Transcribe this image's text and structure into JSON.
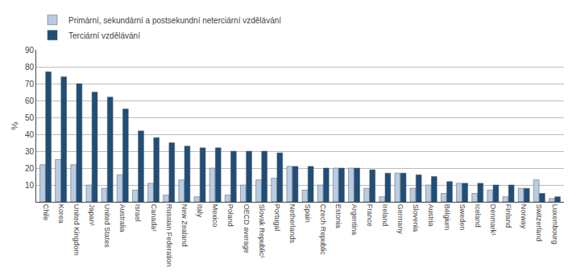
{
  "chart_data": {
    "type": "bar",
    "categories": [
      "Chile",
      "Korea",
      "United Kingdom",
      "Japan¹",
      "United States",
      "Australia",
      "Israel",
      "Canada¹",
      "Russian Federation",
      "New Zealand",
      "Italy",
      "Mexico",
      "Poland",
      "OECD average",
      "Slovak Republic¹",
      "Portugal",
      "Netherlands",
      "Spain",
      "Czech Republic",
      "Estonia",
      "Argentina",
      "France",
      "Ireland",
      "Germany",
      "Slovenia",
      "Austria",
      "Bélgium",
      "Sweden",
      "Iceland",
      "Denmark¹",
      "Finland",
      "Norway",
      "Switzerland",
      "Luxembourg"
    ],
    "series": [
      {
        "name": "Primární, sekundární a postsekundní neterciární vzdělávání",
        "color": "#b8cce4",
        "values": [
          22,
          25,
          22,
          10,
          8,
          16,
          7,
          11,
          4,
          13,
          3,
          20,
          4,
          10,
          13,
          14,
          21,
          7,
          10,
          20,
          20,
          8,
          3,
          17,
          8,
          10,
          5,
          11,
          5,
          7,
          3,
          8,
          13,
          2
        ]
      },
      {
        "name": "Terciární vzdělávání",
        "color": "#1f4e79",
        "values": [
          77,
          74,
          70,
          65,
          62,
          55,
          42,
          38,
          35,
          33,
          32,
          32,
          30,
          30,
          30,
          29,
          21,
          21,
          20,
          20,
          20,
          19,
          17,
          17,
          16,
          15,
          12,
          11,
          11,
          10,
          10,
          8,
          5,
          3
        ]
      }
    ],
    "ylabel": "%",
    "ylim": [
      0,
      90
    ],
    "yticks": [
      10,
      20,
      30,
      40,
      50,
      60,
      70,
      80,
      90
    ],
    "grid": true,
    "legend": "top"
  }
}
